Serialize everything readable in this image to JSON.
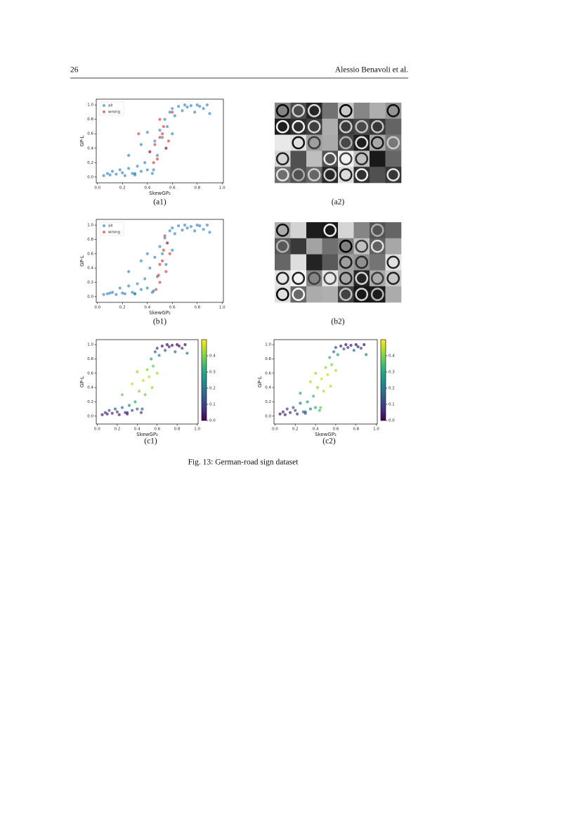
{
  "header": {
    "page_number": "26",
    "authors": "Alessio Benavoli et al."
  },
  "figure_caption": "Fig. 13: German-road sign dataset",
  "images": [
    {
      "caption": "(a2)"
    },
    {
      "caption": "(b2)"
    }
  ],
  "chart_data": [
    {
      "type": "scatter",
      "caption": "(a1)",
      "x_label": "SkewGP₂",
      "y_label": "GP-L",
      "legend": "upper left",
      "xlim": [
        -0.01,
        1.01
      ],
      "ylim": [
        -0.08,
        1.08
      ],
      "xticks": [
        {
          "value": 0,
          "label": "0.0"
        },
        0.2,
        0.4,
        0.6,
        0.8,
        {
          "value": 1,
          "label": "1.0"
        }
      ],
      "yticks": [
        {
          "value": 0,
          "label": "0.0"
        },
        0.2,
        0.4,
        0.6,
        0.8,
        {
          "value": 1,
          "label": "1.0"
        }
      ],
      "series": [
        {
          "name": "all",
          "color": "#1f77b4",
          "x": [
            0.05,
            0.08,
            0.1,
            0.12,
            0.15,
            0.18,
            0.2,
            0.22,
            0.25,
            0.28,
            0.3,
            0.32,
            0.35,
            0.38,
            0.4,
            0.42,
            0.44,
            0.46,
            0.48,
            0.5,
            0.52,
            0.54,
            0.56,
            0.58,
            0.6,
            0.62,
            0.65,
            0.68,
            0.7,
            0.72,
            0.75,
            0.78,
            0.8,
            0.82,
            0.85,
            0.88,
            0.9,
            0.25,
            0.35,
            0.45,
            0.55,
            0.6,
            0.3,
            0.4
          ],
          "values": [
            0.02,
            0.05,
            0.03,
            0.08,
            0.04,
            0.1,
            0.06,
            0.02,
            0.12,
            0.05,
            0.03,
            0.15,
            0.08,
            0.2,
            0.1,
            0.35,
            0.05,
            0.5,
            0.3,
            0.65,
            0.55,
            0.8,
            0.7,
            0.9,
            0.95,
            0.85,
            0.98,
            0.92,
            1.0,
            0.97,
            0.99,
            0.9,
            1.0,
            0.98,
            0.95,
            1.0,
            0.88,
            0.3,
            0.45,
            0.1,
            0.4,
            0.6,
            0.05,
            0.62
          ]
        },
        {
          "name": "wrong",
          "color": "#d62728",
          "x": [
            0.33,
            0.42,
            0.46,
            0.48,
            0.5,
            0.52,
            0.53,
            0.55,
            0.57,
            0.5,
            0.45,
            0.6
          ],
          "values": [
            0.6,
            0.35,
            0.45,
            0.25,
            0.55,
            0.6,
            0.7,
            0.4,
            0.5,
            0.8,
            0.2,
            0.9
          ]
        }
      ]
    },
    {
      "type": "scatter",
      "caption": "(b1)",
      "x_label": "SkewGP₂",
      "y_label": "GP-L",
      "legend": "upper left",
      "xlim": [
        -0.01,
        1.01
      ],
      "ylim": [
        -0.08,
        1.08
      ],
      "xticks": [
        {
          "value": 0,
          "label": "0.0"
        },
        0.2,
        0.4,
        0.6,
        0.8,
        {
          "value": 1,
          "label": "1.0"
        }
      ],
      "yticks": [
        {
          "value": 0,
          "label": "0.0"
        },
        0.2,
        0.4,
        0.6,
        0.8,
        {
          "value": 1,
          "label": "1.0"
        }
      ],
      "series": [
        {
          "name": "all",
          "color": "#1f77b4",
          "x": [
            0.05,
            0.08,
            0.1,
            0.12,
            0.15,
            0.18,
            0.2,
            0.22,
            0.25,
            0.28,
            0.3,
            0.32,
            0.35,
            0.38,
            0.4,
            0.42,
            0.44,
            0.46,
            0.48,
            0.5,
            0.52,
            0.54,
            0.56,
            0.58,
            0.6,
            0.62,
            0.65,
            0.68,
            0.7,
            0.72,
            0.75,
            0.78,
            0.8,
            0.82,
            0.85,
            0.88,
            0.9,
            0.25,
            0.35,
            0.45,
            0.55,
            0.6,
            0.3,
            0.4
          ],
          "values": [
            0.03,
            0.04,
            0.05,
            0.06,
            0.03,
            0.12,
            0.05,
            0.04,
            0.15,
            0.06,
            0.04,
            0.18,
            0.1,
            0.25,
            0.12,
            0.4,
            0.06,
            0.55,
            0.28,
            0.7,
            0.6,
            0.82,
            0.75,
            0.92,
            0.96,
            0.88,
            0.99,
            0.93,
            1.0,
            0.96,
            0.98,
            0.92,
            1.0,
            0.99,
            0.94,
            1.0,
            0.9,
            0.35,
            0.5,
            0.08,
            0.45,
            0.65,
            0.04,
            0.6
          ]
        },
        {
          "name": "wrong",
          "color": "#d62728",
          "x": [
            0.47,
            0.49,
            0.5,
            0.52,
            0.53,
            0.55,
            0.56,
            0.5,
            0.54,
            0.58
          ],
          "values": [
            0.1,
            0.3,
            0.45,
            0.5,
            0.65,
            0.35,
            0.75,
            0.2,
            0.85,
            0.6
          ]
        }
      ]
    },
    {
      "type": "scatter",
      "caption": "(c1)",
      "x_label": "SkewGP₂",
      "y_label": "GP-L",
      "colormap": "viridis",
      "xlim": [
        -0.01,
        1.01
      ],
      "ylim": [
        -0.11,
        1.07
      ],
      "clim": [
        0,
        0.5
      ],
      "xticks": [
        {
          "value": 0,
          "label": "0.0"
        },
        0.2,
        0.4,
        0.6,
        0.8,
        {
          "value": 1,
          "label": "1.0"
        }
      ],
      "yticks": [
        {
          "value": 0,
          "label": "0.0"
        },
        0.2,
        0.4,
        0.6,
        0.8,
        {
          "value": 1,
          "label": "1.0"
        }
      ],
      "cticks": [
        {
          "value": 0,
          "label": "0.0"
        },
        0.1,
        0.2,
        0.3,
        0.4
      ],
      "x": [
        0.05,
        0.08,
        0.1,
        0.12,
        0.15,
        0.18,
        0.2,
        0.22,
        0.25,
        0.28,
        0.3,
        0.32,
        0.35,
        0.38,
        0.4,
        0.42,
        0.44,
        0.46,
        0.48,
        0.5,
        0.52,
        0.54,
        0.56,
        0.58,
        0.6,
        0.62,
        0.65,
        0.68,
        0.7,
        0.72,
        0.75,
        0.78,
        0.8,
        0.82,
        0.85,
        0.88,
        0.9,
        0.25,
        0.35,
        0.45,
        0.55,
        0.6,
        0.3,
        0.4
      ],
      "values": [
        0.02,
        0.05,
        0.03,
        0.08,
        0.04,
        0.1,
        0.06,
        0.02,
        0.12,
        0.05,
        0.03,
        0.15,
        0.08,
        0.2,
        0.1,
        0.35,
        0.05,
        0.5,
        0.3,
        0.65,
        0.55,
        0.8,
        0.7,
        0.9,
        0.95,
        0.85,
        0.98,
        0.92,
        1.0,
        0.97,
        0.99,
        0.9,
        1.0,
        0.98,
        0.95,
        1.0,
        0.88,
        0.3,
        0.45,
        0.1,
        0.4,
        0.6,
        0.05,
        0.62
      ],
      "color_values": [
        0.04,
        0.09,
        0.05,
        0.13,
        0.07,
        0.16,
        0.1,
        0.04,
        0.19,
        0.09,
        0.05,
        0.23,
        0.13,
        0.29,
        0.16,
        0.41,
        0.09,
        0.45,
        0.38,
        0.41,
        0.45,
        0.29,
        0.38,
        0.16,
        0.09,
        0.23,
        0.04,
        0.13,
        0.0,
        0.05,
        0.02,
        0.16,
        0.0,
        0.04,
        0.09,
        0.0,
        0.19,
        0.38,
        0.45,
        0.16,
        0.43,
        0.43,
        0.09,
        0.42
      ]
    },
    {
      "type": "scatter",
      "caption": "(c2)",
      "x_label": "SkewGP₂",
      "y_label": "GP-L",
      "colormap": "viridis",
      "xlim": [
        -0.01,
        1.01
      ],
      "ylim": [
        -0.11,
        1.07
      ],
      "clim": [
        0,
        0.5
      ],
      "xticks": [
        {
          "value": 0,
          "label": "0.0"
        },
        0.2,
        0.4,
        0.6,
        0.8,
        {
          "value": 1,
          "label": "1.0"
        }
      ],
      "yticks": [
        {
          "value": 0,
          "label": "0.0"
        },
        0.2,
        0.4,
        0.6,
        0.8,
        {
          "value": 1,
          "label": "1.0"
        }
      ],
      "cticks": [
        {
          "value": 0,
          "label": "0.0"
        },
        0.1,
        0.2,
        0.3,
        0.4
      ],
      "x": [
        0.05,
        0.08,
        0.1,
        0.12,
        0.15,
        0.18,
        0.2,
        0.22,
        0.25,
        0.28,
        0.3,
        0.32,
        0.35,
        0.38,
        0.4,
        0.42,
        0.44,
        0.46,
        0.48,
        0.5,
        0.52,
        0.54,
        0.56,
        0.58,
        0.6,
        0.62,
        0.65,
        0.68,
        0.7,
        0.72,
        0.75,
        0.78,
        0.8,
        0.82,
        0.85,
        0.88,
        0.9,
        0.25,
        0.35,
        0.45,
        0.55,
        0.6,
        0.3,
        0.4
      ],
      "values": [
        0.03,
        0.06,
        0.02,
        0.1,
        0.05,
        0.12,
        0.08,
        0.03,
        0.18,
        0.06,
        0.04,
        0.2,
        0.1,
        0.28,
        0.12,
        0.4,
        0.08,
        0.52,
        0.35,
        0.68,
        0.58,
        0.82,
        0.72,
        0.9,
        0.96,
        0.86,
        0.98,
        0.94,
        1.0,
        0.96,
        0.99,
        0.92,
        1.0,
        0.97,
        0.95,
        1.0,
        0.86,
        0.32,
        0.48,
        0.12,
        0.42,
        0.64,
        0.06,
        0.6
      ],
      "color_values": [
        0.02,
        0.05,
        0.03,
        0.1,
        0.06,
        0.14,
        0.12,
        0.08,
        0.2,
        0.15,
        0.12,
        0.26,
        0.22,
        0.33,
        0.3,
        0.42,
        0.35,
        0.46,
        0.44,
        0.42,
        0.46,
        0.32,
        0.4,
        0.2,
        0.1,
        0.26,
        0.05,
        0.15,
        0.01,
        0.06,
        0.03,
        0.18,
        0.0,
        0.05,
        0.1,
        0.01,
        0.2,
        0.3,
        0.44,
        0.38,
        0.45,
        0.44,
        0.18,
        0.43
      ]
    }
  ]
}
